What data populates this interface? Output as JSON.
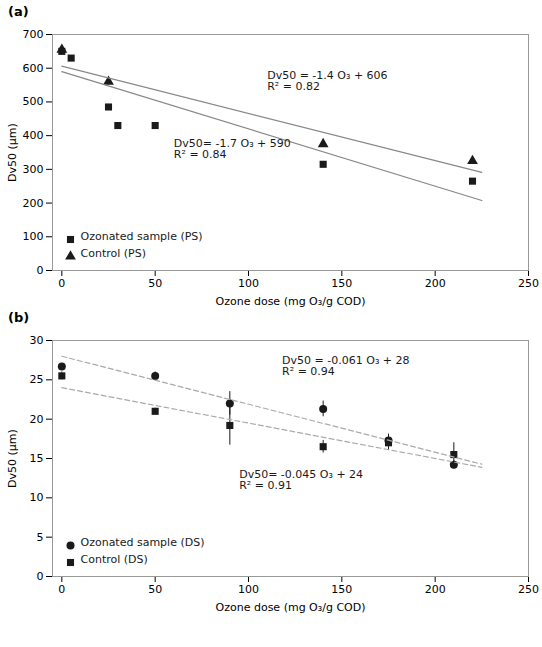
{
  "chart_data": [
    {
      "type": "scatter",
      "title": "(a)",
      "xlabel": "Ozone dose (mg O₃/g COD)",
      "ylabel": "Dv50 (µm)",
      "xlim": [
        -5,
        250
      ],
      "ylim": [
        0,
        700
      ],
      "xticks": [
        0,
        50,
        100,
        150,
        200,
        250
      ],
      "yticks": [
        0,
        100,
        200,
        300,
        400,
        500,
        600,
        700
      ],
      "legend": "lower left",
      "series": [
        {
          "name": "Ozonated sample (PS)",
          "type": "scatter",
          "marker": "square",
          "color": "#1a1a1a",
          "x": [
            0,
            5,
            25,
            30,
            50,
            140,
            220
          ],
          "values": [
            650,
            630,
            485,
            430,
            430,
            315,
            265
          ]
        },
        {
          "name": "Control (PS)",
          "type": "scatter",
          "marker": "triangle",
          "color": "#1a1a1a",
          "x": [
            0,
            25,
            140,
            220
          ],
          "values": [
            655,
            560,
            375,
            325
          ]
        },
        {
          "type": "line",
          "line_style": "solid",
          "color": "#888888",
          "x": [
            0,
            225
          ],
          "values": [
            606,
            291
          ]
        },
        {
          "type": "line",
          "line_style": "solid",
          "color": "#888888",
          "x": [
            0,
            225
          ],
          "values": [
            590,
            207.5
          ]
        }
      ],
      "annotations": [
        {
          "text": "Dv50 = -1.4 O₃ + 606\nR² = 0.82",
          "x": 110,
          "y": 590
        },
        {
          "text": "Dv50= -1.7 O₃ + 590\nR² = 0.84",
          "x": 60,
          "y": 390
        }
      ]
    },
    {
      "type": "scatter",
      "title": "(b)",
      "xlabel": "Ozone dose (mg O₃/g COD)",
      "ylabel": "Dv50 (µm)",
      "xlim": [
        -5,
        250
      ],
      "ylim": [
        0,
        30
      ],
      "xticks": [
        0,
        50,
        100,
        150,
        200,
        250
      ],
      "yticks": [
        0,
        5,
        10,
        15,
        20,
        25,
        30
      ],
      "legend": "lower left",
      "series": [
        {
          "name": "Ozonated sample (DS)",
          "type": "scatter",
          "marker": "circle",
          "color": "#1a1a1a",
          "x": [
            0,
            50,
            90,
            140,
            175,
            210
          ],
          "values": [
            26.7,
            25.5,
            22.0,
            21.3,
            17.3,
            14.2
          ],
          "yerr": [
            0.3,
            0.5,
            1.5,
            1.0,
            0.8,
            0.5
          ]
        },
        {
          "name": "Control (DS)",
          "type": "scatter",
          "marker": "square",
          "color": "#1a1a1a",
          "x": [
            0,
            50,
            90,
            140,
            175,
            210
          ],
          "values": [
            25.5,
            21.0,
            19.2,
            16.5,
            17.0,
            15.5
          ],
          "yerr": [
            0.5,
            0.4,
            2.5,
            0.8,
            1.0,
            1.5
          ]
        },
        {
          "type": "line",
          "line_style": "dashed",
          "color": "#aaaaaa",
          "x": [
            0,
            225
          ],
          "values": [
            28,
            14.275
          ]
        },
        {
          "type": "line",
          "line_style": "dashed",
          "color": "#aaaaaa",
          "x": [
            0,
            225
          ],
          "values": [
            24,
            13.875
          ]
        }
      ],
      "annotations": [
        {
          "text": "Dv50 = -0.061 O₃ + 28\nR² = 0.94",
          "x": 118,
          "y": 28.0
        },
        {
          "text": "Dv50= -0.045 O₃ + 24\nR² = 0.91",
          "x": 95,
          "y": 13.5
        }
      ]
    }
  ]
}
